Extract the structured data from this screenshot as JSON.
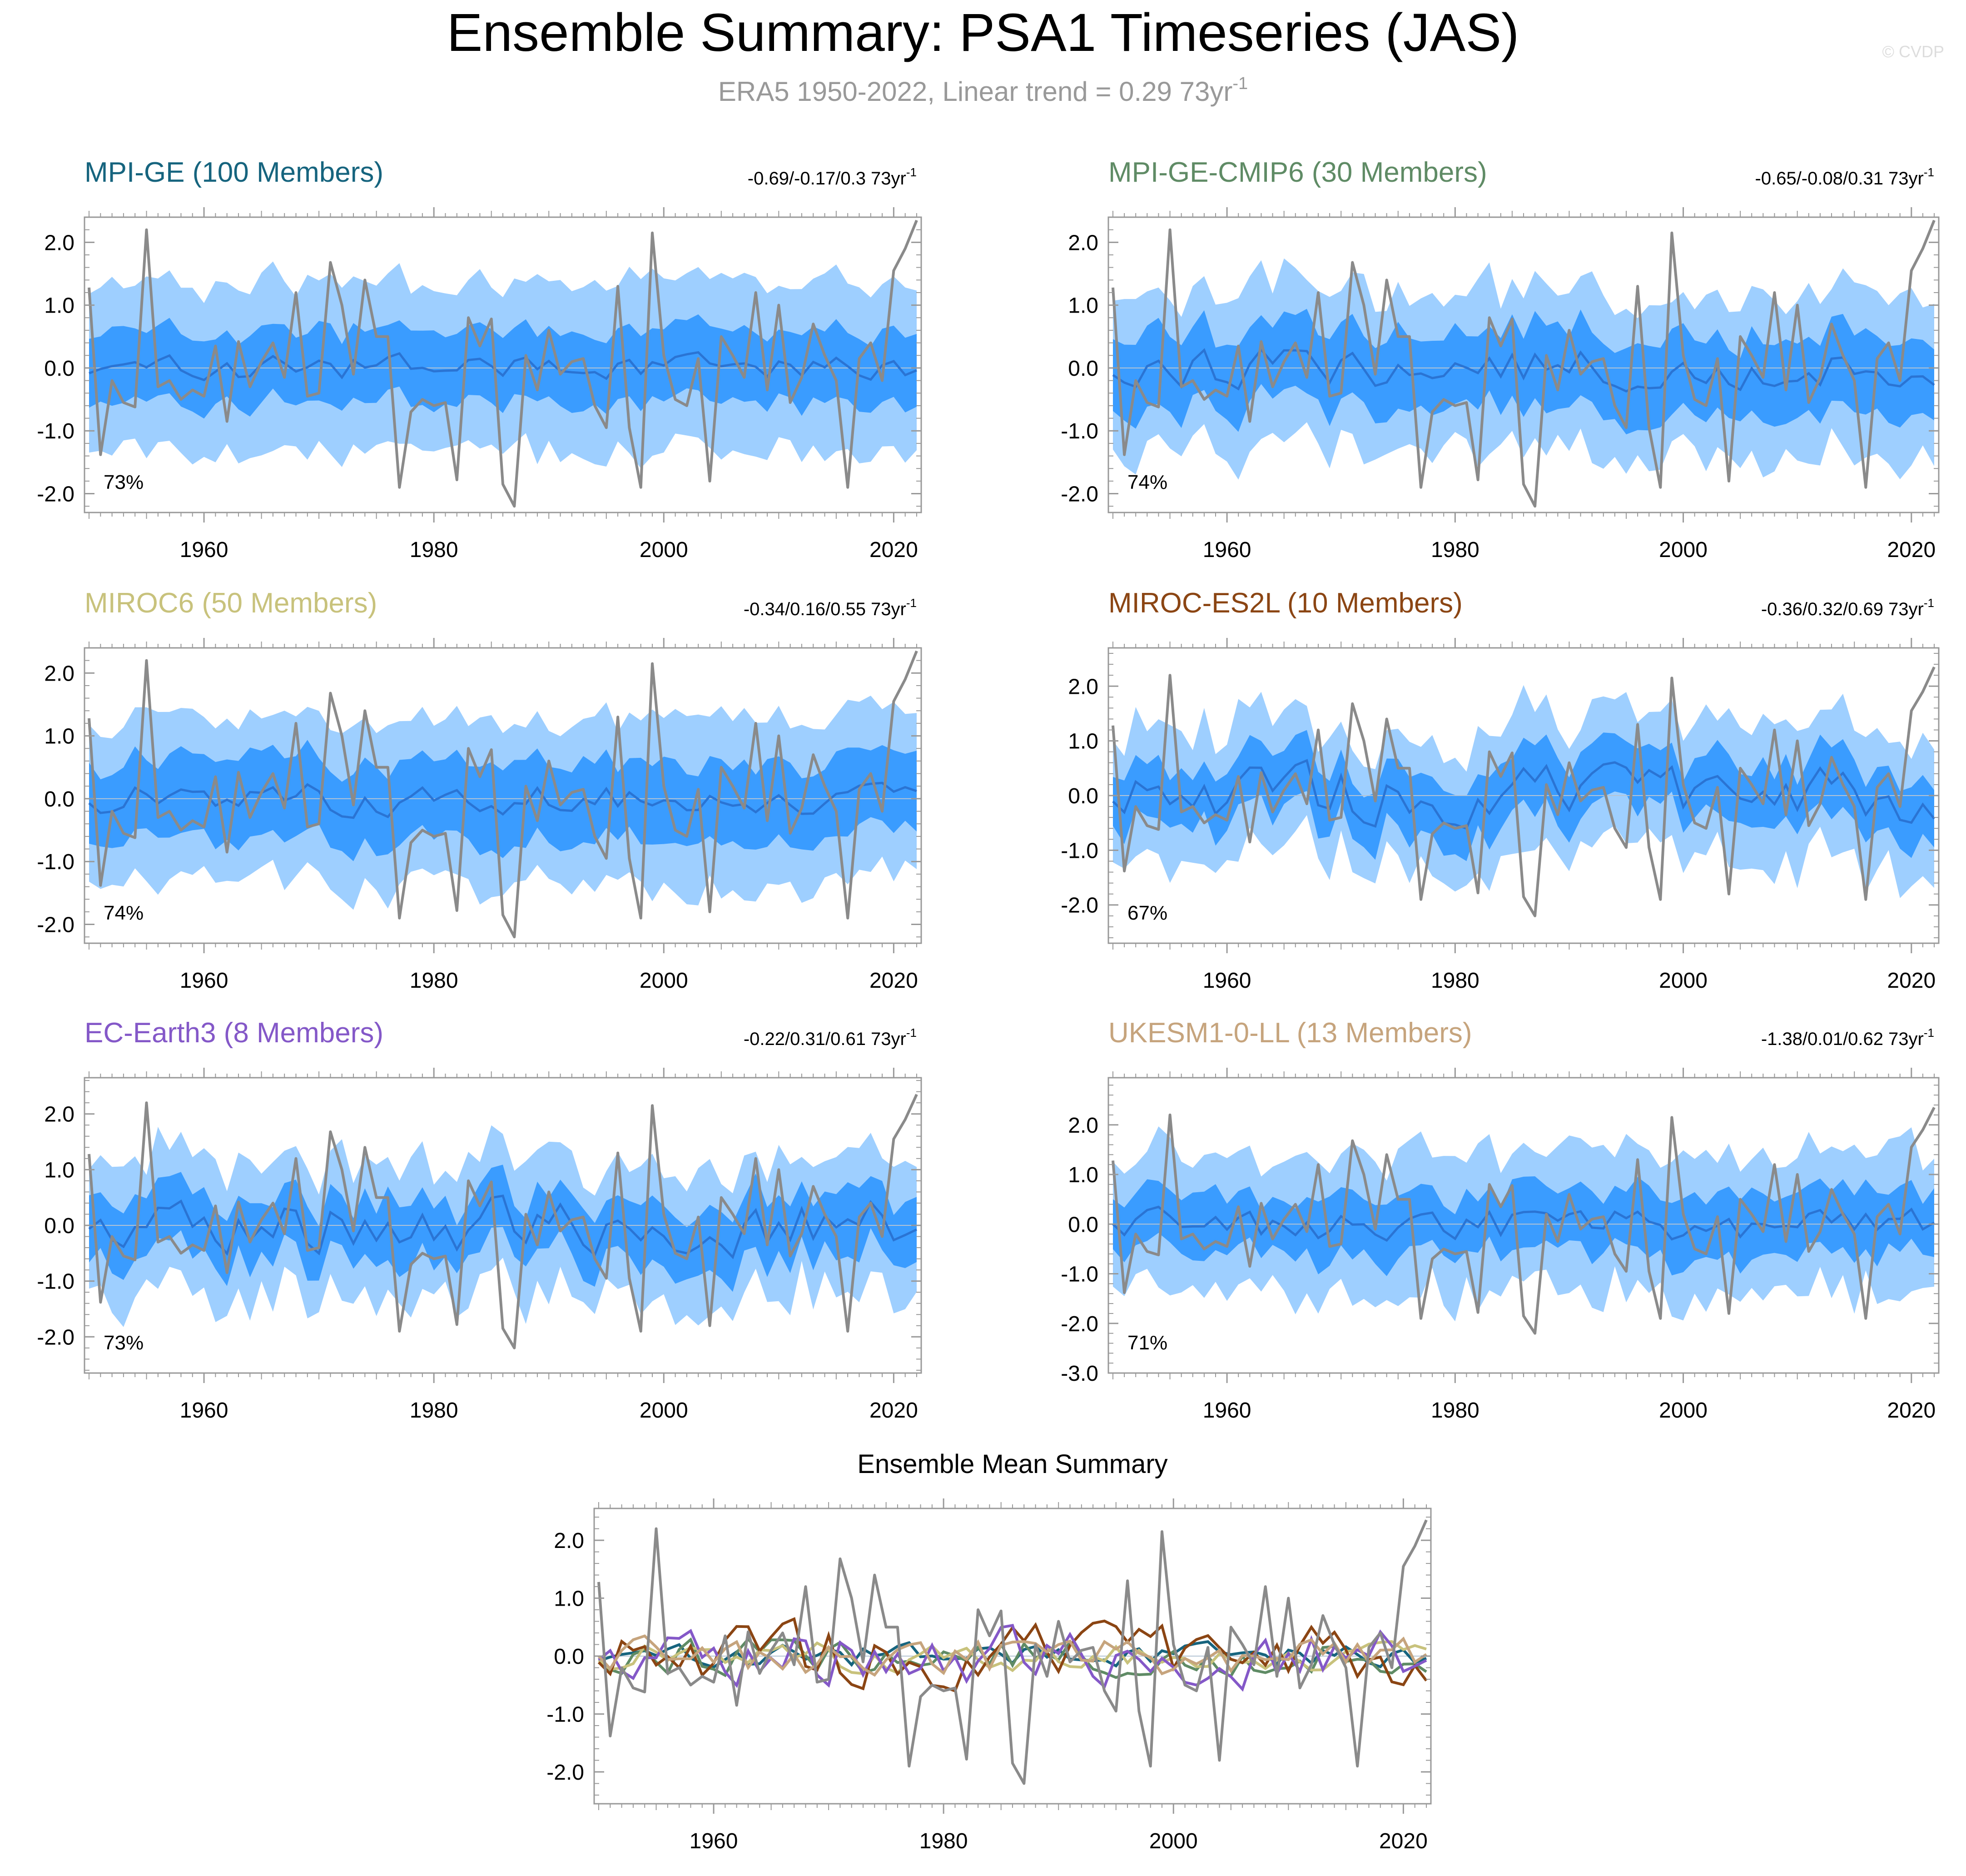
{
  "title": "Ensemble Summary: PSA1 Timeseries (JAS)",
  "subtitle": "ERA5 1950-2022, Linear trend = 0.29 73yr",
  "subtitle_sup": "-1",
  "watermark": "© CVDP",
  "colors": {
    "outer_band": "#9ecfff",
    "inner_band": "#3a9cff",
    "ensemble_mean": "#2a74d4",
    "observations": "#8a8a8a",
    "zero_line": "#b4c4d4"
  },
  "chart_data": [
    {
      "type": "line",
      "panel": "MPI-GE",
      "title": "MPI-GE (100 Members)",
      "title_color": "#16647e",
      "trend_text": "-0.69/-0.17/0.3 73yr",
      "trend_sup": "-1",
      "percent_label": "73%",
      "x_range": [
        1950,
        2022
      ],
      "ylim": [
        -2.3,
        2.4
      ],
      "y_ticks": [
        2.0,
        1.0,
        0.0,
        -1.0,
        -2.0
      ],
      "y_tick_labels": [
        "2.0",
        "1.0",
        "0.0",
        "-1.0",
        "-2.0"
      ],
      "x_ticks": [
        1960,
        1980,
        2000,
        2020
      ],
      "band_seed": 11,
      "band_outer": 1.35,
      "band_inner": 0.58,
      "band_var": 0.25,
      "mean_amp": 0.18,
      "mean_offset": 0.0
    },
    {
      "type": "line",
      "panel": "MPI-GE-CMIP6",
      "title": "MPI-GE-CMIP6 (30 Members)",
      "title_color": "#5f8b65",
      "trend_text": "-0.65/-0.08/0.31 73yr",
      "trend_sup": "-1",
      "percent_label": "74%",
      "x_range": [
        1950,
        2022
      ],
      "ylim": [
        -2.3,
        2.4
      ],
      "y_ticks": [
        2.0,
        1.0,
        0.0,
        -1.0,
        -2.0
      ],
      "y_tick_labels": [
        "2.0",
        "1.0",
        "0.0",
        "-1.0",
        "-2.0"
      ],
      "x_ticks": [
        1960,
        1980,
        2000,
        2020
      ],
      "band_seed": 23,
      "band_outer": 1.3,
      "band_inner": 0.6,
      "band_var": 0.35,
      "mean_amp": 0.28,
      "mean_offset": 0.0
    },
    {
      "type": "line",
      "panel": "MIROC6",
      "title": "MIROC6 (50 Members)",
      "title_color": "#c8c27c",
      "trend_text": "-0.34/0.16/0.55 73yr",
      "trend_sup": "-1",
      "percent_label": "74%",
      "x_range": [
        1950,
        2022
      ],
      "ylim": [
        -2.3,
        2.4
      ],
      "y_ticks": [
        2.0,
        1.0,
        0.0,
        -1.0,
        -2.0
      ],
      "y_tick_labels": [
        "2.0",
        "1.0",
        "0.0",
        "-1.0",
        "-2.0"
      ],
      "x_ticks": [
        1960,
        1980,
        2000,
        2020
      ],
      "band_seed": 37,
      "band_outer": 1.35,
      "band_inner": 0.62,
      "band_var": 0.3,
      "mean_amp": 0.22,
      "mean_offset": 0.0
    },
    {
      "type": "line",
      "panel": "MIROC-ES2L",
      "title": "MIROC-ES2L (10 Members)",
      "title_color": "#8b4513",
      "trend_text": "-0.36/0.32/0.69 73yr",
      "trend_sup": "-1",
      "percent_label": "67%",
      "x_range": [
        1950,
        2022
      ],
      "ylim": [
        -2.7,
        2.7
      ],
      "y_ticks": [
        2.0,
        1.0,
        0.0,
        -1.0,
        -2.0
      ],
      "y_tick_labels": [
        "2.0",
        "1.0",
        "0.0",
        "-1.0",
        "-2.0"
      ],
      "x_ticks": [
        1960,
        1980,
        2000,
        2020
      ],
      "band_seed": 53,
      "band_outer": 1.25,
      "band_inner": 0.55,
      "band_var": 0.45,
      "mean_amp": 0.45,
      "mean_offset": 0.0
    },
    {
      "type": "line",
      "panel": "EC-Earth3",
      "title": "EC-Earth3 (8 Members)",
      "title_color": "#8458c8",
      "trend_text": "-0.22/0.31/0.61 73yr",
      "trend_sup": "-1",
      "percent_label": "73%",
      "x_range": [
        1950,
        2022
      ],
      "ylim": [
        -2.65,
        2.65
      ],
      "y_ticks": [
        2.0,
        1.0,
        0.0,
        -1.0,
        -2.0
      ],
      "y_tick_labels": [
        "2.0",
        "1.0",
        "0.0",
        "-1.0",
        "-2.0"
      ],
      "x_ticks": [
        1960,
        1980,
        2000,
        2020
      ],
      "band_seed": 71,
      "band_outer": 1.2,
      "band_inner": 0.55,
      "band_var": 0.45,
      "mean_amp": 0.45,
      "mean_offset": 0.0
    },
    {
      "type": "line",
      "panel": "UKESM1-0-LL",
      "title": "UKESM1-0-LL (13 Members)",
      "title_color": "#c6a47d",
      "trend_text": "-1.38/0.01/0.62 73yr",
      "trend_sup": "-1",
      "percent_label": "71%",
      "x_range": [
        1950,
        2022
      ],
      "ylim": [
        -3.0,
        2.95
      ],
      "y_ticks": [
        2.0,
        1.0,
        0.0,
        -1.0,
        -2.0,
        -3.0
      ],
      "y_tick_labels": [
        "2.0",
        "1.0",
        "0.0",
        "-1.0",
        "-2.0",
        "-3.0"
      ],
      "x_ticks": [
        1960,
        1980,
        2000,
        2020
      ],
      "band_seed": 97,
      "band_outer": 1.4,
      "band_inner": 0.62,
      "band_var": 0.45,
      "mean_amp": 0.3,
      "mean_offset": 0.0
    },
    {
      "type": "line",
      "panel": "Ensemble Mean Summary",
      "title": "Ensemble Mean Summary",
      "title_color": "#000000",
      "x_range": [
        1950,
        2022
      ],
      "ylim": [
        -2.55,
        2.55
      ],
      "y_ticks": [
        2.0,
        1.0,
        0.0,
        -1.0,
        -2.0
      ],
      "y_tick_labels": [
        "2.0",
        "1.0",
        "0.0",
        "-1.0",
        "-2.0"
      ],
      "x_ticks": [
        1960,
        1980,
        2000,
        2020
      ],
      "series": [
        {
          "name": "MPI-GE",
          "color": "#16647e",
          "seed": 11,
          "amp": 0.18
        },
        {
          "name": "MPI-GE-CMIP6",
          "color": "#5f8b65",
          "seed": 23,
          "amp": 0.28
        },
        {
          "name": "MIROC6",
          "color": "#c8c27c",
          "seed": 37,
          "amp": 0.22
        },
        {
          "name": "MIROC-ES2L",
          "color": "#8b4513",
          "seed": 53,
          "amp": 0.45
        },
        {
          "name": "EC-Earth3",
          "color": "#8458c8",
          "seed": 71,
          "amp": 0.45
        },
        {
          "name": "UKESM1-0-LL",
          "color": "#c6a47d",
          "seed": 97,
          "amp": 0.3
        }
      ]
    }
  ],
  "observations": {
    "name": "ERA5",
    "years": [
      1950,
      1951,
      1952,
      1953,
      1954,
      1955,
      1956,
      1957,
      1958,
      1959,
      1960,
      1961,
      1962,
      1963,
      1964,
      1965,
      1966,
      1967,
      1968,
      1969,
      1970,
      1971,
      1972,
      1973,
      1974,
      1975,
      1976,
      1977,
      1978,
      1979,
      1980,
      1981,
      1982,
      1983,
      1984,
      1985,
      1986,
      1987,
      1988,
      1989,
      1990,
      1991,
      1992,
      1993,
      1994,
      1995,
      1996,
      1997,
      1998,
      1999,
      2000,
      2001,
      2002,
      2003,
      2004,
      2005,
      2006,
      2007,
      2008,
      2009,
      2010,
      2011,
      2012,
      2013,
      2014,
      2015,
      2016,
      2017,
      2018,
      2019,
      2020,
      2021,
      2022
    ],
    "values": [
      1.28,
      -1.38,
      -0.2,
      -0.55,
      -0.62,
      2.2,
      -0.3,
      -0.2,
      -0.5,
      -0.35,
      -0.45,
      0.35,
      -0.85,
      0.42,
      -0.3,
      0.1,
      0.4,
      -0.15,
      1.2,
      -0.45,
      -0.4,
      1.68,
      1.0,
      -0.1,
      1.4,
      0.5,
      0.5,
      -1.9,
      -0.7,
      -0.5,
      -0.6,
      -0.55,
      -1.78,
      0.8,
      0.35,
      0.78,
      -1.85,
      -2.2,
      0.2,
      -0.35,
      0.6,
      -0.1,
      0.1,
      0.15,
      -0.6,
      -0.95,
      1.3,
      -0.95,
      -1.9,
      2.15,
      0.2,
      -0.5,
      -0.6,
      0.15,
      -1.8,
      0.5,
      0.2,
      -0.15,
      1.2,
      -0.35,
      1.0,
      -0.55,
      -0.15,
      0.7,
      0.2,
      -0.2,
      -1.9,
      0.15,
      0.4,
      -0.2,
      1.55,
      1.9,
      2.35
    ]
  }
}
